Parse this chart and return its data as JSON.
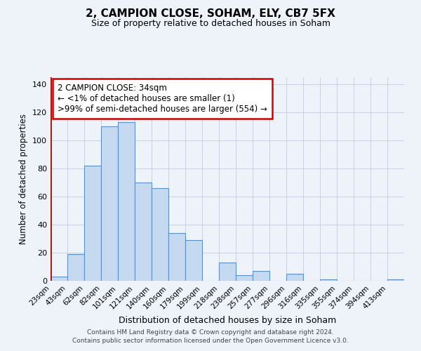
{
  "title": "2, CAMPION CLOSE, SOHAM, ELY, CB7 5FX",
  "subtitle": "Size of property relative to detached houses in Soham",
  "xlabel": "Distribution of detached houses by size in Soham",
  "ylabel": "Number of detached properties",
  "bar_labels": [
    "23sqm",
    "43sqm",
    "62sqm",
    "82sqm",
    "101sqm",
    "121sqm",
    "140sqm",
    "160sqm",
    "179sqm",
    "199sqm",
    "218sqm",
    "238sqm",
    "257sqm",
    "277sqm",
    "296sqm",
    "316sqm",
    "335sqm",
    "355sqm",
    "374sqm",
    "394sqm",
    "413sqm"
  ],
  "bar_values": [
    3,
    19,
    82,
    110,
    113,
    70,
    66,
    34,
    29,
    0,
    13,
    4,
    7,
    0,
    5,
    0,
    1,
    0,
    0,
    0,
    1
  ],
  "bar_color": "#c5d9f1",
  "bar_edge_color": "#5b8fc9",
  "marker_color": "#cc0000",
  "ylim": [
    0,
    145
  ],
  "yticks": [
    0,
    20,
    40,
    60,
    80,
    100,
    120,
    140
  ],
  "annotation_title": "2 CAMPION CLOSE: 34sqm",
  "annotation_line1": "← <1% of detached houses are smaller (1)",
  "annotation_line2": ">99% of semi-detached houses are larger (554) →",
  "footer_line1": "Contains HM Land Registry data © Crown copyright and database right 2024.",
  "footer_line2": "Contains public sector information licensed under the Open Government Licence v3.0.",
  "background_color": "#eef2f9"
}
